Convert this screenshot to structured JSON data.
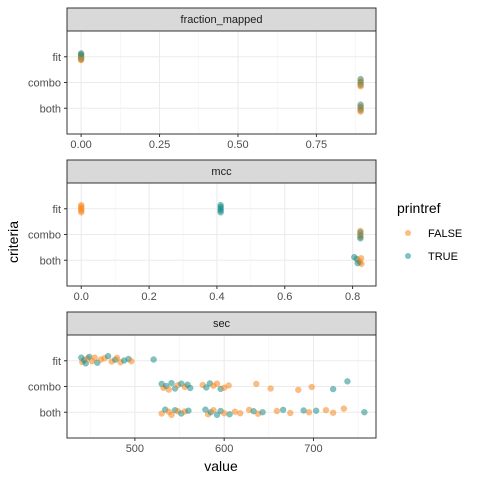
{
  "chart_data": {
    "type": "scatter",
    "facet_layout": "vertical",
    "ylabel": "criteria",
    "xlabel": "value",
    "categories": [
      "both",
      "combo",
      "fit"
    ],
    "colors": {
      "FALSE": "#F8861E",
      "TRUE": "#1B8E8A"
    },
    "legend": {
      "title": "printref",
      "placement": "right",
      "entries": [
        "FALSE",
        "TRUE"
      ]
    },
    "panels": [
      {
        "title": "fraction_mapped",
        "xlim": [
          -0.045,
          0.94
        ],
        "xticks": [
          0.0,
          0.25,
          0.5,
          0.75
        ],
        "xtick_labels": [
          "0.00",
          "0.25",
          "0.50",
          "0.75"
        ],
        "points": [
          {
            "x": 0.0,
            "y": "fit",
            "g": "FALSE",
            "j": 0.1
          },
          {
            "x": 0.0,
            "y": "fit",
            "g": "TRUE",
            "j": 0.06
          },
          {
            "x": 0.0,
            "y": "fit",
            "g": "FALSE",
            "j": 0.02
          },
          {
            "x": 0.0,
            "y": "fit",
            "g": "TRUE",
            "j": -0.02
          },
          {
            "x": 0.0,
            "y": "fit",
            "g": "FALSE",
            "j": -0.06
          },
          {
            "x": 0.0,
            "y": "fit",
            "g": "TRUE",
            "j": -0.1
          },
          {
            "x": 0.0,
            "y": "fit",
            "g": "FALSE",
            "j": -0.13
          },
          {
            "x": 0.0,
            "y": "fit",
            "g": "TRUE",
            "j": 0.13
          },
          {
            "x": 0.891,
            "y": "combo",
            "g": "TRUE",
            "j": 0.13
          },
          {
            "x": 0.891,
            "y": "combo",
            "g": "FALSE",
            "j": 0.07
          },
          {
            "x": 0.891,
            "y": "combo",
            "g": "TRUE",
            "j": 0.01
          },
          {
            "x": 0.891,
            "y": "combo",
            "g": "FALSE",
            "j": -0.05
          },
          {
            "x": 0.891,
            "y": "combo",
            "g": "TRUE",
            "j": -0.1
          },
          {
            "x": 0.891,
            "y": "combo",
            "g": "FALSE",
            "j": -0.15
          },
          {
            "x": 0.891,
            "y": "both",
            "g": "TRUE",
            "j": 0.14
          },
          {
            "x": 0.891,
            "y": "both",
            "g": "FALSE",
            "j": 0.08
          },
          {
            "x": 0.891,
            "y": "both",
            "g": "TRUE",
            "j": 0.03
          },
          {
            "x": 0.891,
            "y": "both",
            "g": "FALSE",
            "j": -0.03
          },
          {
            "x": 0.891,
            "y": "both",
            "g": "TRUE",
            "j": -0.08
          },
          {
            "x": 0.891,
            "y": "both",
            "g": "FALSE",
            "j": -0.13
          }
        ]
      },
      {
        "title": "mcc",
        "xlim": [
          -0.042,
          0.869
        ],
        "xticks": [
          0.0,
          0.2,
          0.4,
          0.6,
          0.8
        ],
        "xtick_labels": [
          "0.0",
          "0.2",
          "0.4",
          "0.6",
          "0.8"
        ],
        "points": [
          {
            "x": 0.0,
            "y": "fit",
            "g": "FALSE",
            "j": 0.14
          },
          {
            "x": 0.0,
            "y": "fit",
            "g": "FALSE",
            "j": 0.07
          },
          {
            "x": 0.0,
            "y": "fit",
            "g": "FALSE",
            "j": 0.0
          },
          {
            "x": 0.0,
            "y": "fit",
            "g": "FALSE",
            "j": -0.07
          },
          {
            "x": 0.0,
            "y": "fit",
            "g": "FALSE",
            "j": -0.14
          },
          {
            "x": 0.411,
            "y": "fit",
            "g": "TRUE",
            "j": 0.14
          },
          {
            "x": 0.411,
            "y": "fit",
            "g": "TRUE",
            "j": 0.07
          },
          {
            "x": 0.411,
            "y": "fit",
            "g": "TRUE",
            "j": 0.0
          },
          {
            "x": 0.411,
            "y": "fit",
            "g": "TRUE",
            "j": -0.07
          },
          {
            "x": 0.411,
            "y": "fit",
            "g": "TRUE",
            "j": -0.14
          },
          {
            "x": 0.823,
            "y": "combo",
            "g": "FALSE",
            "j": 0.14
          },
          {
            "x": 0.823,
            "y": "combo",
            "g": "TRUE",
            "j": 0.08
          },
          {
            "x": 0.823,
            "y": "combo",
            "g": "FALSE",
            "j": 0.02
          },
          {
            "x": 0.823,
            "y": "combo",
            "g": "TRUE",
            "j": -0.04
          },
          {
            "x": 0.823,
            "y": "combo",
            "g": "FALSE",
            "j": -0.1
          },
          {
            "x": 0.823,
            "y": "combo",
            "g": "TRUE",
            "j": -0.15
          },
          {
            "x": 0.805,
            "y": "both",
            "g": "TRUE",
            "j": 0.12
          },
          {
            "x": 0.812,
            "y": "both",
            "g": "TRUE",
            "j": 0.05
          },
          {
            "x": 0.818,
            "y": "both",
            "g": "FALSE",
            "j": -0.02
          },
          {
            "x": 0.825,
            "y": "both",
            "g": "FALSE",
            "j": 0.08
          },
          {
            "x": 0.822,
            "y": "both",
            "g": "FALSE",
            "j": -0.08
          },
          {
            "x": 0.826,
            "y": "both",
            "g": "FALSE",
            "j": -0.14
          },
          {
            "x": 0.815,
            "y": "both",
            "g": "TRUE",
            "j": -0.11
          }
        ]
      },
      {
        "title": "sec",
        "xlim": [
          424,
          770
        ],
        "xticks": [
          500,
          600,
          700
        ],
        "xtick_labels": [
          "500",
          "600",
          "700"
        ],
        "points": [
          {
            "x": 440,
            "y": "fit",
            "g": "TRUE",
            "j": 0.12
          },
          {
            "x": 441,
            "y": "fit",
            "g": "FALSE",
            "j": -0.05
          },
          {
            "x": 443,
            "y": "fit",
            "g": "TRUE",
            "j": 0.02
          },
          {
            "x": 445,
            "y": "fit",
            "g": "TRUE",
            "j": -0.1
          },
          {
            "x": 447,
            "y": "fit",
            "g": "FALSE",
            "j": 0.09
          },
          {
            "x": 449,
            "y": "fit",
            "g": "TRUE",
            "j": 0.15
          },
          {
            "x": 452,
            "y": "fit",
            "g": "FALSE",
            "j": -0.02
          },
          {
            "x": 455,
            "y": "fit",
            "g": "FALSE",
            "j": 0.12
          },
          {
            "x": 458,
            "y": "fit",
            "g": "TRUE",
            "j": -0.08
          },
          {
            "x": 462,
            "y": "fit",
            "g": "FALSE",
            "j": 0.05
          },
          {
            "x": 466,
            "y": "fit",
            "g": "FALSE",
            "j": 0.1
          },
          {
            "x": 470,
            "y": "fit",
            "g": "TRUE",
            "j": 0.18
          },
          {
            "x": 474,
            "y": "fit",
            "g": "FALSE",
            "j": -0.03
          },
          {
            "x": 478,
            "y": "fit",
            "g": "TRUE",
            "j": 0.04
          },
          {
            "x": 480,
            "y": "fit",
            "g": "FALSE",
            "j": 0.11
          },
          {
            "x": 484,
            "y": "fit",
            "g": "FALSE",
            "j": -0.06
          },
          {
            "x": 488,
            "y": "fit",
            "g": "TRUE",
            "j": 0.01
          },
          {
            "x": 493,
            "y": "fit",
            "g": "TRUE",
            "j": 0.07
          },
          {
            "x": 496,
            "y": "fit",
            "g": "FALSE",
            "j": -0.02
          },
          {
            "x": 521,
            "y": "fit",
            "g": "TRUE",
            "j": 0.05
          },
          {
            "x": 530,
            "y": "combo",
            "g": "TRUE",
            "j": 0.1
          },
          {
            "x": 532,
            "y": "combo",
            "g": "FALSE",
            "j": -0.05
          },
          {
            "x": 535,
            "y": "combo",
            "g": "TRUE",
            "j": 0.02
          },
          {
            "x": 538,
            "y": "combo",
            "g": "FALSE",
            "j": -0.12
          },
          {
            "x": 541,
            "y": "combo",
            "g": "TRUE",
            "j": 0.13
          },
          {
            "x": 545,
            "y": "combo",
            "g": "TRUE",
            "j": -0.08
          },
          {
            "x": 548,
            "y": "combo",
            "g": "FALSE",
            "j": 0.05
          },
          {
            "x": 552,
            "y": "combo",
            "g": "TRUE",
            "j": 0.11
          },
          {
            "x": 556,
            "y": "combo",
            "g": "FALSE",
            "j": -0.02
          },
          {
            "x": 559,
            "y": "combo",
            "g": "TRUE",
            "j": 0.07
          },
          {
            "x": 562,
            "y": "combo",
            "g": "TRUE",
            "j": -0.06
          },
          {
            "x": 576,
            "y": "combo",
            "g": "FALSE",
            "j": 0.06
          },
          {
            "x": 580,
            "y": "combo",
            "g": "TRUE",
            "j": -0.04
          },
          {
            "x": 584,
            "y": "combo",
            "g": "TRUE",
            "j": 0.12
          },
          {
            "x": 588,
            "y": "combo",
            "g": "FALSE",
            "j": 0.03
          },
          {
            "x": 592,
            "y": "combo",
            "g": "FALSE",
            "j": 0.11
          },
          {
            "x": 596,
            "y": "combo",
            "g": "TRUE",
            "j": -0.09
          },
          {
            "x": 600,
            "y": "combo",
            "g": "FALSE",
            "j": -0.05
          },
          {
            "x": 605,
            "y": "combo",
            "g": "FALSE",
            "j": 0.04
          },
          {
            "x": 636,
            "y": "combo",
            "g": "FALSE",
            "j": 0.1
          },
          {
            "x": 652,
            "y": "combo",
            "g": "FALSE",
            "j": -0.08
          },
          {
            "x": 683,
            "y": "combo",
            "g": "FALSE",
            "j": -0.13
          },
          {
            "x": 698,
            "y": "combo",
            "g": "FALSE",
            "j": -0.02
          },
          {
            "x": 722,
            "y": "combo",
            "g": "TRUE",
            "j": -0.1
          },
          {
            "x": 738,
            "y": "combo",
            "g": "TRUE",
            "j": 0.2
          },
          {
            "x": 530,
            "y": "both",
            "g": "FALSE",
            "j": -0.05
          },
          {
            "x": 534,
            "y": "both",
            "g": "TRUE",
            "j": 0.1
          },
          {
            "x": 538,
            "y": "both",
            "g": "FALSE",
            "j": 0.02
          },
          {
            "x": 541,
            "y": "both",
            "g": "FALSE",
            "j": -0.1
          },
          {
            "x": 545,
            "y": "both",
            "g": "TRUE",
            "j": 0.08
          },
          {
            "x": 548,
            "y": "both",
            "g": "FALSE",
            "j": 0.04
          },
          {
            "x": 552,
            "y": "both",
            "g": "TRUE",
            "j": -0.05
          },
          {
            "x": 556,
            "y": "both",
            "g": "FALSE",
            "j": 0.03
          },
          {
            "x": 560,
            "y": "both",
            "g": "TRUE",
            "j": 0.06
          },
          {
            "x": 579,
            "y": "both",
            "g": "TRUE",
            "j": 0.1
          },
          {
            "x": 582,
            "y": "both",
            "g": "FALSE",
            "j": -0.08
          },
          {
            "x": 585,
            "y": "both",
            "g": "TRUE",
            "j": 0.0
          },
          {
            "x": 588,
            "y": "both",
            "g": "FALSE",
            "j": 0.08
          },
          {
            "x": 592,
            "y": "both",
            "g": "TRUE",
            "j": -0.1
          },
          {
            "x": 596,
            "y": "both",
            "g": "TRUE",
            "j": 0.05
          },
          {
            "x": 600,
            "y": "both",
            "g": "FALSE",
            "j": -0.04
          },
          {
            "x": 606,
            "y": "both",
            "g": "TRUE",
            "j": -0.08
          },
          {
            "x": 612,
            "y": "both",
            "g": "FALSE",
            "j": 0.02
          },
          {
            "x": 618,
            "y": "both",
            "g": "FALSE",
            "j": -0.04
          },
          {
            "x": 628,
            "y": "both",
            "g": "FALSE",
            "j": 0.09
          },
          {
            "x": 633,
            "y": "both",
            "g": "TRUE",
            "j": 0.04
          },
          {
            "x": 638,
            "y": "both",
            "g": "FALSE",
            "j": -0.06
          },
          {
            "x": 643,
            "y": "both",
            "g": "TRUE",
            "j": 0.0
          },
          {
            "x": 659,
            "y": "both",
            "g": "FALSE",
            "j": 0.05
          },
          {
            "x": 666,
            "y": "both",
            "g": "TRUE",
            "j": 0.09
          },
          {
            "x": 674,
            "y": "both",
            "g": "FALSE",
            "j": -0.03
          },
          {
            "x": 689,
            "y": "both",
            "g": "TRUE",
            "j": 0.07
          },
          {
            "x": 695,
            "y": "both",
            "g": "FALSE",
            "j": 0.0
          },
          {
            "x": 703,
            "y": "both",
            "g": "TRUE",
            "j": 0.06
          },
          {
            "x": 714,
            "y": "both",
            "g": "FALSE",
            "j": 0.08
          },
          {
            "x": 722,
            "y": "both",
            "g": "FALSE",
            "j": -0.02
          },
          {
            "x": 734,
            "y": "both",
            "g": "FALSE",
            "j": 0.14
          },
          {
            "x": 757,
            "y": "both",
            "g": "TRUE",
            "j": 0.0
          }
        ]
      }
    ]
  }
}
